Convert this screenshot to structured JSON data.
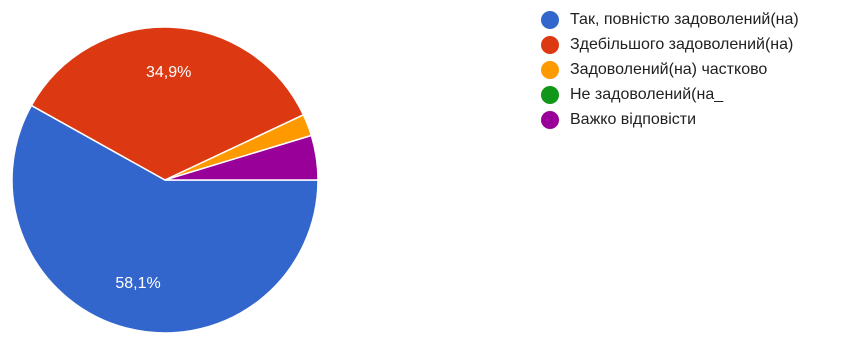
{
  "chart_data": {
    "type": "pie",
    "slices": [
      {
        "label": "Так, повністю задоволений(на)",
        "value": 58.1,
        "color": "#3366cc",
        "data_label": "58,1%"
      },
      {
        "label": "Здебільшого задоволений(на)",
        "value": 34.9,
        "color": "#dc3912",
        "data_label": "34,9%"
      },
      {
        "label": "Задоволений(на) частково",
        "value": 2.3,
        "color": "#ff9900",
        "data_label": ""
      },
      {
        "label": "Не задоволений(на_",
        "value": 0,
        "color": "#109618",
        "data_label": ""
      },
      {
        "label": "Важко відповісти",
        "value": 4.7,
        "color": "#990099",
        "data_label": ""
      }
    ],
    "legend_position": "right",
    "start_direction": "east",
    "direction": "clockwise"
  },
  "legend": {
    "items": [
      {
        "label": "Так, повністю задоволений(на)",
        "color": "#3366cc"
      },
      {
        "label": "Здебільшого задоволений(на)",
        "color": "#dc3912"
      },
      {
        "label": "Задоволений(на) частково",
        "color": "#ff9900"
      },
      {
        "label": "Не задоволений(на_",
        "color": "#109618"
      },
      {
        "label": "Важко відповісти",
        "color": "#990099"
      }
    ]
  }
}
